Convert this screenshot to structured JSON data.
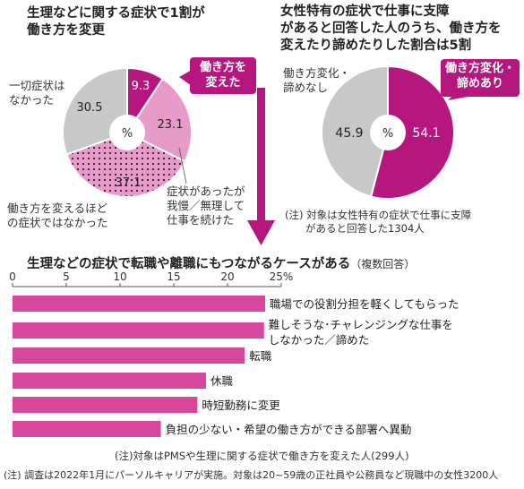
{
  "colors": {
    "magenta": "#b5177f",
    "pink": "#e69bc9",
    "grey": "#c8c8c8",
    "bar": "#d7479c"
  },
  "chart_data": [
    {
      "type": "pie",
      "title": "生理などに関する症状で1割が\n働き方を変更",
      "slices": [
        {
          "label": "働き方を\n変えた",
          "value": 9.3,
          "color": "#b5177f",
          "style": "solid"
        },
        {
          "label": "症状があったが\n我慢／無理して\n仕事を続けた",
          "value": 23.1,
          "color": "#e69bc9",
          "style": "solid"
        },
        {
          "label": "働き方を変えるほど\nの症状ではなかった",
          "value": 37.1,
          "color": "#e69bc9",
          "style": "dotted"
        },
        {
          "label": "一切症状は\nなかった",
          "value": 30.5,
          "color": "#c8c8c8",
          "style": "solid"
        }
      ],
      "center_label": "%"
    },
    {
      "type": "pie",
      "title": "女性特有の症状で仕事に支障\nがあると回答した人のうち、働き方を\n変えたり諦めたりした割合は5割",
      "slices": [
        {
          "label": "働き方変化・\n諦めあり",
          "value": 54.1,
          "color": "#b5177f"
        },
        {
          "label": "働き方変化・\n諦めなし",
          "value": 45.9,
          "color": "#c8c8c8"
        }
      ],
      "center_label": "%",
      "note": "(注) 対象は女性特有の症状で仕事に支障\n　　があると回答した1304人"
    },
    {
      "type": "bar",
      "orientation": "horizontal",
      "title": "生理などの症状で転職や離職にもつながるケースがある",
      "subtitle": "（複数回答）",
      "xlim": [
        0,
        25
      ],
      "ticks": [
        0,
        5,
        10,
        15,
        20
      ],
      "last_tick_label": "25%",
      "categories": [
        "職場での役割分担を軽くしてもらった",
        "難しそうな･チャレンジングな仕事を\nしなかった／諦めた",
        "転職",
        "休職",
        "時短勤務に変更",
        "負担の少ない・希望の働き方ができる部署へ異動"
      ],
      "values": [
        23.5,
        23.4,
        21.6,
        18.0,
        17.2,
        13.8
      ],
      "note": "(注)対象はPMSや生理に関する症状で働き方を変えた人(299人)"
    }
  ],
  "footer_note": "(注) 調査は2022年1月にパーソルキャリアが実施。対象は20~59歳の正社員や公務員など現職中の女性3200人"
}
